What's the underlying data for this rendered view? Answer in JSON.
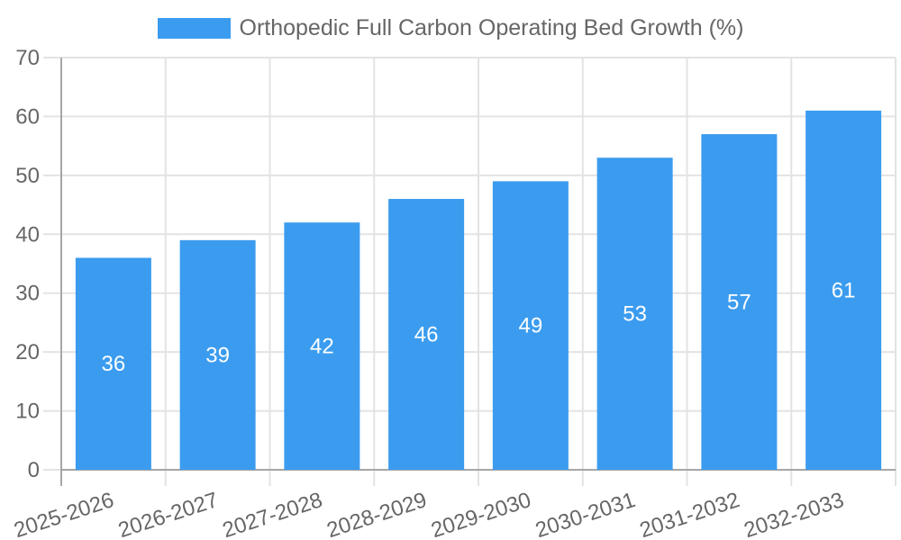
{
  "chart_data": {
    "type": "bar",
    "title": "Orthopedic Full Carbon Operating Bed Growth (%)",
    "categories": [
      "2025-2026",
      "2026-2027",
      "2027-2028",
      "2028-2029",
      "2029-2030",
      "2030-2031",
      "2031-2032",
      "2032-2033"
    ],
    "values": [
      36,
      39,
      42,
      46,
      49,
      53,
      57,
      61
    ],
    "xlabel": "",
    "ylabel": "",
    "ylim": [
      0,
      70
    ],
    "ytick_step": 10,
    "grid": true,
    "legend_position": "top-center",
    "x_label_rotation_deg": -18,
    "bar_color": "#3B9CEF",
    "value_label_color": "#FFFFFF",
    "axis_text_color": "#666666",
    "grid_color": "#E3E3E3",
    "axis_line_color": "#A6A6A6",
    "background_color": "#FFFFFF"
  }
}
